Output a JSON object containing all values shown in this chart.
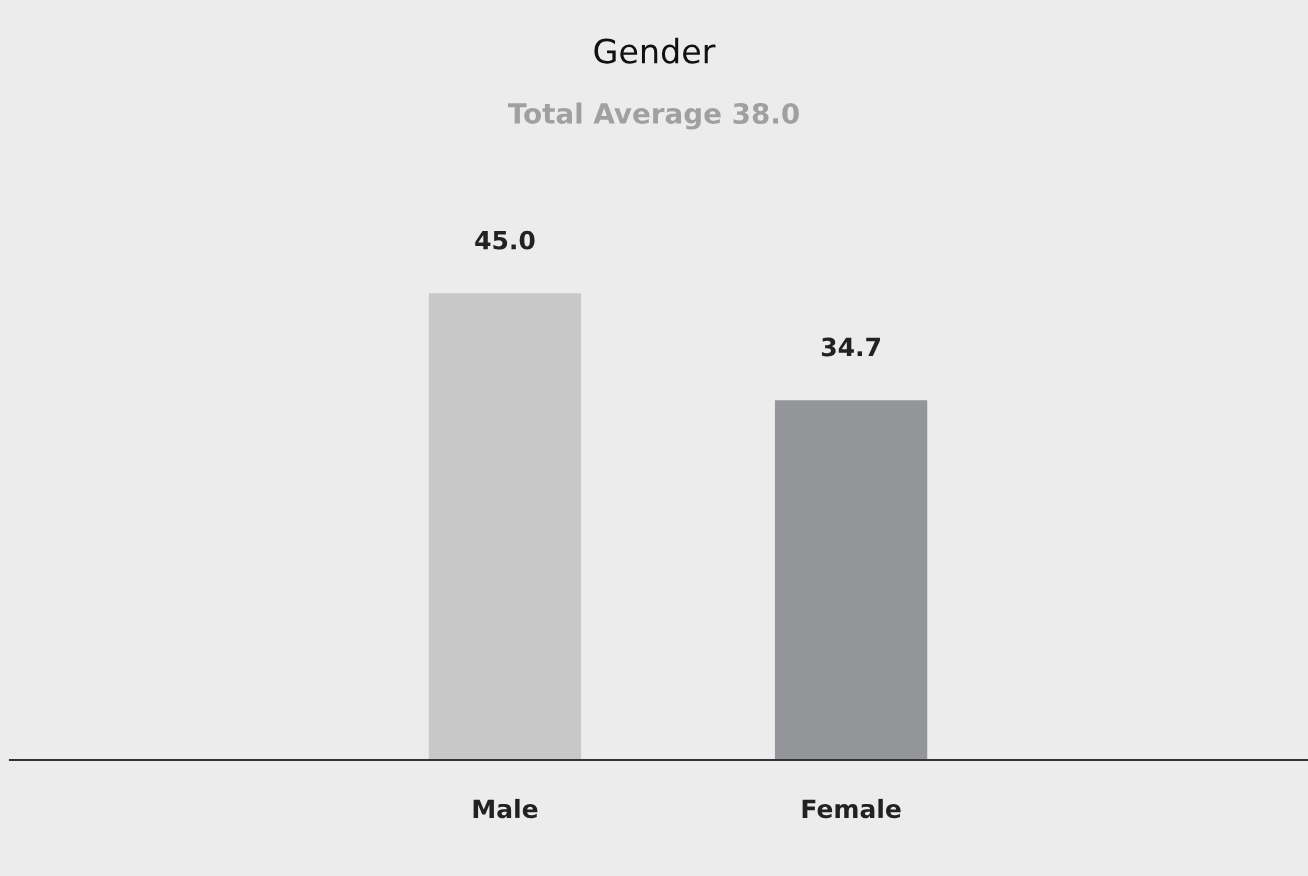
{
  "chart_data": {
    "type": "bar",
    "title": "Gender",
    "subtitle": "Total Average 38.0",
    "categories": [
      "Male",
      "Female"
    ],
    "values": [
      45.0,
      34.7
    ],
    "colors": [
      "#c8c8c8",
      "#939598"
    ],
    "value_labels": [
      "45.0",
      "34.7"
    ],
    "grid": false,
    "legend": false
  }
}
